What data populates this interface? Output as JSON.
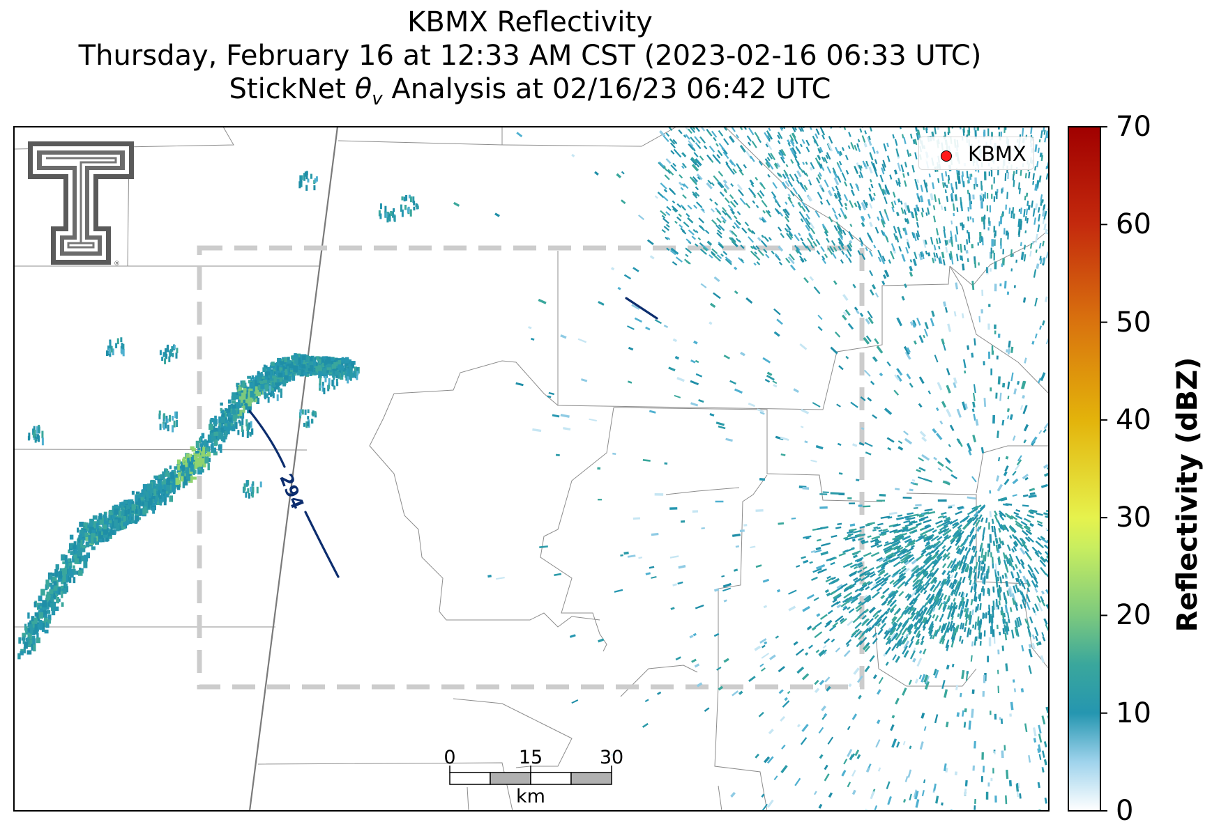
{
  "title": {
    "line1": "KBMX Reflectivity",
    "line2": "Thursday, February 16 at 12:33 AM CST (2023-02-16 06:33 UTC)",
    "line3_prefix": "StickNet ",
    "line3_theta": "θ",
    "line3_sub": "v",
    "line3_suffix": " Analysis at 02/16/23 06:42 UTC"
  },
  "legend": {
    "marker_color": "#ff1a1a",
    "label": "KBMX"
  },
  "colorbar": {
    "label": "Reflectivity (dBZ)",
    "ticks": [
      "0",
      "10",
      "20",
      "30",
      "40",
      "50",
      "60",
      "70"
    ],
    "range": [
      0,
      70
    ],
    "stops": [
      {
        "value": 0,
        "color": "#ffffff"
      },
      {
        "value": 5,
        "color": "#9fd3ec"
      },
      {
        "value": 10,
        "color": "#2596b0"
      },
      {
        "value": 15,
        "color": "#3aa79c"
      },
      {
        "value": 20,
        "color": "#7cc97e"
      },
      {
        "value": 27,
        "color": "#c9ee5f"
      },
      {
        "value": 30,
        "color": "#e6f24d"
      },
      {
        "value": 40,
        "color": "#e3b30b"
      },
      {
        "value": 50,
        "color": "#d9730e"
      },
      {
        "value": 60,
        "color": "#c42a0d"
      },
      {
        "value": 70,
        "color": "#a00000"
      }
    ]
  },
  "contour": {
    "label": "294",
    "color": "#0c2d6e"
  },
  "scalebar": {
    "ticks": [
      "0",
      "15",
      "30"
    ],
    "unit": "km"
  },
  "analysis_box": {
    "color": "#cccccc",
    "style": "dashed"
  },
  "logo": {
    "name": "Texas Tech Double T"
  }
}
